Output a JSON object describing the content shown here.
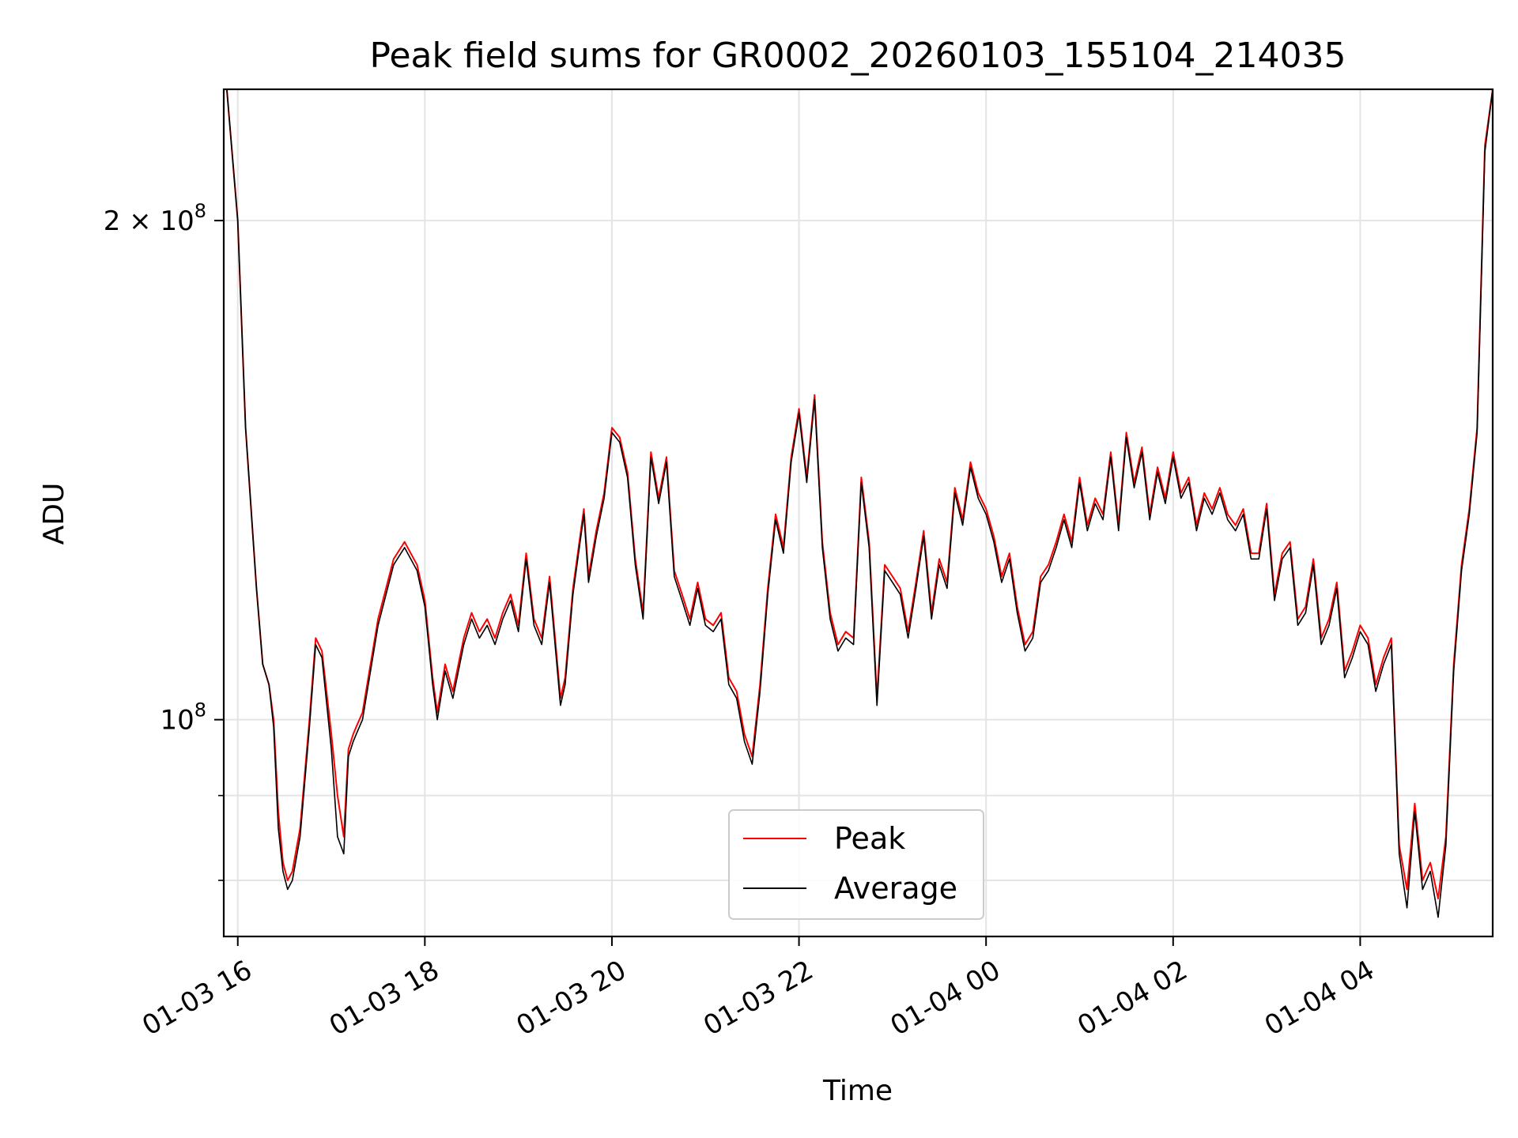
{
  "chart_data": {
    "type": "line",
    "title": "Peak field sums for GR0002_20260103_155104_214035",
    "xlabel": "Time",
    "ylabel": "ADU",
    "y_scale": "log",
    "grid": true,
    "legend_position": "lower-center",
    "x_range": [
      "2026-01-03 15:51",
      "2026-01-04 05:25"
    ],
    "ylim": [
      74000000,
      240000000
    ],
    "x_ticks": [
      {
        "t": "2026-01-03 16:00",
        "label": "01-03 16"
      },
      {
        "t": "2026-01-03 18:00",
        "label": "01-03 18"
      },
      {
        "t": "2026-01-03 20:00",
        "label": "01-03 20"
      },
      {
        "t": "2026-01-03 22:00",
        "label": "01-03 22"
      },
      {
        "t": "2026-01-04 00:00",
        "label": "01-04 00"
      },
      {
        "t": "2026-01-04 02:00",
        "label": "01-04 02"
      },
      {
        "t": "2026-01-04 04:00",
        "label": "01-04 04"
      }
    ],
    "y_major_ticks": [
      {
        "value": 100000000,
        "base": "10",
        "exp": "8",
        "mantissa": ""
      },
      {
        "value": 200000000,
        "base": "10",
        "exp": "8",
        "mantissa": "2 × "
      }
    ],
    "y_minor_ticks": [
      80000000,
      90000000
    ],
    "series": [
      {
        "name": "Peak",
        "color": "#ff0000",
        "x": [
          "2026-01-03 15:53",
          "2026-01-03 16:00",
          "2026-01-03 16:05",
          "2026-01-03 16:12",
          "2026-01-03 16:16",
          "2026-01-03 16:20",
          "2026-01-03 16:23",
          "2026-01-03 16:26",
          "2026-01-03 16:29",
          "2026-01-03 16:32",
          "2026-01-03 16:35",
          "2026-01-03 16:40",
          "2026-01-03 16:46",
          "2026-01-03 16:50",
          "2026-01-03 16:54",
          "2026-01-03 17:00",
          "2026-01-03 17:04",
          "2026-01-03 17:08",
          "2026-01-03 17:11",
          "2026-01-03 17:14",
          "2026-01-03 17:16",
          "2026-01-03 17:20",
          "2026-01-03 17:30",
          "2026-01-03 17:40",
          "2026-01-03 17:47",
          "2026-01-03 17:55",
          "2026-01-03 18:00",
          "2026-01-03 18:05",
          "2026-01-03 18:08",
          "2026-01-03 18:13",
          "2026-01-03 18:18",
          "2026-01-03 18:25",
          "2026-01-03 18:30",
          "2026-01-03 18:35",
          "2026-01-03 18:40",
          "2026-01-03 18:45",
          "2026-01-03 18:50",
          "2026-01-03 18:55",
          "2026-01-03 19:00",
          "2026-01-03 19:05",
          "2026-01-03 19:10",
          "2026-01-03 19:15",
          "2026-01-03 19:20",
          "2026-01-03 19:27",
          "2026-01-03 19:30",
          "2026-01-03 19:35",
          "2026-01-03 19:42",
          "2026-01-03 19:45",
          "2026-01-03 19:50",
          "2026-01-03 19:55",
          "2026-01-03 20:00",
          "2026-01-03 20:05",
          "2026-01-03 20:10",
          "2026-01-03 20:15",
          "2026-01-03 20:20",
          "2026-01-03 20:25",
          "2026-01-03 20:30",
          "2026-01-03 20:35",
          "2026-01-03 20:40",
          "2026-01-03 20:45",
          "2026-01-03 20:50",
          "2026-01-03 20:55",
          "2026-01-03 21:00",
          "2026-01-03 21:05",
          "2026-01-03 21:10",
          "2026-01-03 21:15",
          "2026-01-03 21:20",
          "2026-01-03 21:25",
          "2026-01-03 21:30",
          "2026-01-03 21:35",
          "2026-01-03 21:40",
          "2026-01-03 21:45",
          "2026-01-03 21:50",
          "2026-01-03 21:55",
          "2026-01-03 22:00",
          "2026-01-03 22:05",
          "2026-01-03 22:10",
          "2026-01-03 22:15",
          "2026-01-03 22:20",
          "2026-01-03 22:25",
          "2026-01-03 22:30",
          "2026-01-03 22:35",
          "2026-01-03 22:40",
          "2026-01-03 22:45",
          "2026-01-03 22:50",
          "2026-01-03 22:55",
          "2026-01-03 23:00",
          "2026-01-03 23:05",
          "2026-01-03 23:10",
          "2026-01-03 23:15",
          "2026-01-03 23:20",
          "2026-01-03 23:25",
          "2026-01-03 23:30",
          "2026-01-03 23:35",
          "2026-01-03 23:40",
          "2026-01-03 23:45",
          "2026-01-03 23:50",
          "2026-01-03 23:55",
          "2026-01-04 00:00",
          "2026-01-04 00:05",
          "2026-01-04 00:10",
          "2026-01-04 00:15",
          "2026-01-04 00:20",
          "2026-01-04 00:25",
          "2026-01-04 00:30",
          "2026-01-04 00:35",
          "2026-01-04 00:40",
          "2026-01-04 00:45",
          "2026-01-04 00:50",
          "2026-01-04 00:55",
          "2026-01-04 01:00",
          "2026-01-04 01:05",
          "2026-01-04 01:10",
          "2026-01-04 01:15",
          "2026-01-04 01:20",
          "2026-01-04 01:25",
          "2026-01-04 01:30",
          "2026-01-04 01:35",
          "2026-01-04 01:40",
          "2026-01-04 01:45",
          "2026-01-04 01:50",
          "2026-01-04 01:55",
          "2026-01-04 02:00",
          "2026-01-04 02:05",
          "2026-01-04 02:10",
          "2026-01-04 02:15",
          "2026-01-04 02:20",
          "2026-01-04 02:25",
          "2026-01-04 02:30",
          "2026-01-04 02:35",
          "2026-01-04 02:40",
          "2026-01-04 02:45",
          "2026-01-04 02:50",
          "2026-01-04 02:55",
          "2026-01-04 03:00",
          "2026-01-04 03:05",
          "2026-01-04 03:10",
          "2026-01-04 03:15",
          "2026-01-04 03:20",
          "2026-01-04 03:25",
          "2026-01-04 03:30",
          "2026-01-04 03:35",
          "2026-01-04 03:40",
          "2026-01-04 03:45",
          "2026-01-04 03:50",
          "2026-01-04 03:55",
          "2026-01-04 04:00",
          "2026-01-04 04:05",
          "2026-01-04 04:10",
          "2026-01-04 04:15",
          "2026-01-04 04:20",
          "2026-01-04 04:25",
          "2026-01-04 04:30",
          "2026-01-04 04:35",
          "2026-01-04 04:40",
          "2026-01-04 04:45",
          "2026-01-04 04:50",
          "2026-01-04 04:55",
          "2026-01-04 05:00",
          "2026-01-04 05:05",
          "2026-01-04 05:10",
          "2026-01-04 05:15",
          "2026-01-04 05:20",
          "2026-01-04 05:25"
        ],
        "y": [
          240000000,
          200000000,
          150000000,
          120000000,
          108000000,
          105000000,
          100000000,
          88000000,
          82000000,
          80000000,
          81000000,
          86000000,
          100000000,
          112000000,
          110000000,
          98000000,
          90000000,
          85000000,
          96000000,
          98000000,
          99000000,
          101000000,
          115000000,
          125000000,
          128000000,
          124000000,
          118000000,
          106000000,
          101000000,
          108000000,
          104000000,
          112000000,
          116000000,
          113000000,
          115000000,
          112000000,
          116000000,
          119000000,
          114000000,
          126000000,
          115000000,
          112000000,
          122000000,
          103000000,
          106000000,
          120000000,
          134000000,
          122000000,
          130000000,
          137000000,
          150000000,
          148000000,
          141000000,
          125000000,
          116000000,
          145000000,
          136000000,
          144000000,
          123000000,
          119000000,
          115000000,
          121000000,
          115000000,
          114000000,
          116000000,
          106000000,
          104000000,
          98000000,
          95000000,
          105000000,
          120000000,
          133000000,
          127000000,
          144000000,
          154000000,
          140000000,
          157000000,
          128000000,
          116000000,
          111000000,
          113000000,
          112000000,
          140000000,
          128000000,
          103000000,
          124000000,
          122000000,
          120000000,
          113000000,
          121000000,
          130000000,
          116000000,
          125000000,
          121000000,
          138000000,
          132000000,
          143000000,
          137000000,
          134000000,
          129000000,
          122000000,
          126000000,
          117000000,
          111000000,
          113000000,
          122000000,
          124000000,
          128000000,
          133000000,
          128000000,
          140000000,
          131000000,
          136000000,
          133000000,
          145000000,
          131000000,
          149000000,
          139000000,
          146000000,
          133000000,
          142000000,
          136000000,
          145000000,
          137000000,
          140000000,
          131000000,
          137000000,
          134000000,
          138000000,
          133000000,
          131000000,
          134000000,
          126000000,
          126000000,
          135000000,
          119000000,
          126000000,
          128000000,
          115000000,
          117000000,
          125000000,
          112000000,
          115000000,
          121000000,
          107000000,
          110000000,
          114000000,
          112000000,
          105000000,
          109000000,
          112000000,
          84000000,
          79000000,
          89000000,
          80000000,
          82000000,
          78000000,
          85000000,
          108000000,
          124000000,
          134000000,
          150000000,
          222000000,
          240000000
        ]
      },
      {
        "name": "Average",
        "color": "#000000",
        "x": [
          "2026-01-03 15:53",
          "2026-01-03 16:00",
          "2026-01-03 16:05",
          "2026-01-03 16:12",
          "2026-01-03 16:16",
          "2026-01-03 16:20",
          "2026-01-03 16:23",
          "2026-01-03 16:26",
          "2026-01-03 16:29",
          "2026-01-03 16:32",
          "2026-01-03 16:35",
          "2026-01-03 16:40",
          "2026-01-03 16:46",
          "2026-01-03 16:50",
          "2026-01-03 16:54",
          "2026-01-03 17:00",
          "2026-01-03 17:04",
          "2026-01-03 17:08",
          "2026-01-03 17:11",
          "2026-01-03 17:14",
          "2026-01-03 17:16",
          "2026-01-03 17:20",
          "2026-01-03 17:30",
          "2026-01-03 17:40",
          "2026-01-03 17:47",
          "2026-01-03 17:55",
          "2026-01-03 18:00",
          "2026-01-03 18:05",
          "2026-01-03 18:08",
          "2026-01-03 18:13",
          "2026-01-03 18:18",
          "2026-01-03 18:25",
          "2026-01-03 18:30",
          "2026-01-03 18:35",
          "2026-01-03 18:40",
          "2026-01-03 18:45",
          "2026-01-03 18:50",
          "2026-01-03 18:55",
          "2026-01-03 19:00",
          "2026-01-03 19:05",
          "2026-01-03 19:10",
          "2026-01-03 19:15",
          "2026-01-03 19:20",
          "2026-01-03 19:27",
          "2026-01-03 19:30",
          "2026-01-03 19:35",
          "2026-01-03 19:42",
          "2026-01-03 19:45",
          "2026-01-03 19:50",
          "2026-01-03 19:55",
          "2026-01-03 20:00",
          "2026-01-03 20:05",
          "2026-01-03 20:10",
          "2026-01-03 20:15",
          "2026-01-03 20:20",
          "2026-01-03 20:25",
          "2026-01-03 20:30",
          "2026-01-03 20:35",
          "2026-01-03 20:40",
          "2026-01-03 20:45",
          "2026-01-03 20:50",
          "2026-01-03 20:55",
          "2026-01-03 21:00",
          "2026-01-03 21:05",
          "2026-01-03 21:10",
          "2026-01-03 21:15",
          "2026-01-03 21:20",
          "2026-01-03 21:25",
          "2026-01-03 21:30",
          "2026-01-03 21:35",
          "2026-01-03 21:40",
          "2026-01-03 21:45",
          "2026-01-03 21:50",
          "2026-01-03 21:55",
          "2026-01-03 22:00",
          "2026-01-03 22:05",
          "2026-01-03 22:10",
          "2026-01-03 22:15",
          "2026-01-03 22:20",
          "2026-01-03 22:25",
          "2026-01-03 22:30",
          "2026-01-03 22:35",
          "2026-01-03 22:40",
          "2026-01-03 22:45",
          "2026-01-03 22:50",
          "2026-01-03 22:55",
          "2026-01-03 23:00",
          "2026-01-03 23:05",
          "2026-01-03 23:10",
          "2026-01-03 23:15",
          "2026-01-03 23:20",
          "2026-01-03 23:25",
          "2026-01-03 23:30",
          "2026-01-03 23:35",
          "2026-01-03 23:40",
          "2026-01-03 23:45",
          "2026-01-03 23:50",
          "2026-01-03 23:55",
          "2026-01-04 00:00",
          "2026-01-04 00:05",
          "2026-01-04 00:10",
          "2026-01-04 00:15",
          "2026-01-04 00:20",
          "2026-01-04 00:25",
          "2026-01-04 00:30",
          "2026-01-04 00:35",
          "2026-01-04 00:40",
          "2026-01-04 00:45",
          "2026-01-04 00:50",
          "2026-01-04 00:55",
          "2026-01-04 01:00",
          "2026-01-04 01:05",
          "2026-01-04 01:10",
          "2026-01-04 01:15",
          "2026-01-04 01:20",
          "2026-01-04 01:25",
          "2026-01-04 01:30",
          "2026-01-04 01:35",
          "2026-01-04 01:40",
          "2026-01-04 01:45",
          "2026-01-04 01:50",
          "2026-01-04 01:55",
          "2026-01-04 02:00",
          "2026-01-04 02:05",
          "2026-01-04 02:10",
          "2026-01-04 02:15",
          "2026-01-04 02:20",
          "2026-01-04 02:25",
          "2026-01-04 02:30",
          "2026-01-04 02:35",
          "2026-01-04 02:40",
          "2026-01-04 02:45",
          "2026-01-04 02:50",
          "2026-01-04 02:55",
          "2026-01-04 03:00",
          "2026-01-04 03:05",
          "2026-01-04 03:10",
          "2026-01-04 03:15",
          "2026-01-04 03:20",
          "2026-01-04 03:25",
          "2026-01-04 03:30",
          "2026-01-04 03:35",
          "2026-01-04 03:40",
          "2026-01-04 03:45",
          "2026-01-04 03:50",
          "2026-01-04 03:55",
          "2026-01-04 04:00",
          "2026-01-04 04:05",
          "2026-01-04 04:10",
          "2026-01-04 04:15",
          "2026-01-04 04:20",
          "2026-01-04 04:25",
          "2026-01-04 04:30",
          "2026-01-04 04:35",
          "2026-01-04 04:40",
          "2026-01-04 04:45",
          "2026-01-04 04:50",
          "2026-01-04 04:55",
          "2026-01-04 05:00",
          "2026-01-04 05:05",
          "2026-01-04 05:10",
          "2026-01-04 05:15",
          "2026-01-04 05:20",
          "2026-01-04 05:25"
        ],
        "y": [
          240000000,
          200000000,
          150000000,
          120000000,
          108000000,
          105000000,
          99000000,
          86000000,
          81000000,
          79000000,
          80000000,
          85000000,
          99000000,
          111000000,
          109000000,
          96000000,
          85000000,
          83000000,
          95000000,
          97000000,
          98000000,
          100000000,
          114000000,
          124000000,
          127000000,
          123000000,
          117000000,
          105000000,
          100000000,
          107000000,
          103000000,
          111000000,
          115000000,
          112000000,
          114000000,
          111000000,
          115000000,
          118000000,
          113000000,
          125000000,
          114000000,
          111000000,
          121000000,
          102000000,
          105000000,
          119000000,
          133000000,
          121000000,
          129000000,
          136000000,
          149000000,
          147000000,
          140000000,
          124000000,
          115000000,
          144000000,
          135000000,
          143000000,
          122000000,
          118000000,
          114000000,
          120000000,
          114000000,
          113000000,
          115000000,
          105000000,
          103000000,
          97000000,
          94000000,
          104000000,
          119000000,
          132000000,
          126000000,
          143000000,
          153000000,
          139000000,
          156000000,
          127000000,
          115000000,
          110000000,
          112000000,
          111000000,
          139000000,
          127000000,
          102000000,
          123000000,
          121000000,
          119000000,
          112000000,
          120000000,
          129000000,
          115000000,
          124000000,
          120000000,
          137000000,
          131000000,
          142000000,
          136000000,
          133000000,
          128000000,
          121000000,
          125000000,
          116000000,
          110000000,
          112000000,
          121000000,
          123000000,
          127000000,
          132000000,
          127000000,
          139000000,
          130000000,
          135000000,
          132000000,
          144000000,
          130000000,
          148000000,
          138000000,
          145000000,
          132000000,
          141000000,
          135000000,
          144000000,
          136000000,
          139000000,
          130000000,
          136000000,
          133000000,
          137000000,
          132000000,
          130000000,
          133000000,
          125000000,
          125000000,
          134000000,
          118000000,
          125000000,
          127000000,
          114000000,
          116000000,
          124000000,
          111000000,
          114000000,
          120000000,
          106000000,
          109000000,
          113000000,
          111000000,
          104000000,
          108000000,
          111000000,
          83000000,
          77000000,
          88000000,
          79000000,
          81000000,
          76000000,
          84000000,
          107000000,
          123000000,
          133000000,
          149000000,
          220000000,
          240000000
        ]
      }
    ]
  }
}
